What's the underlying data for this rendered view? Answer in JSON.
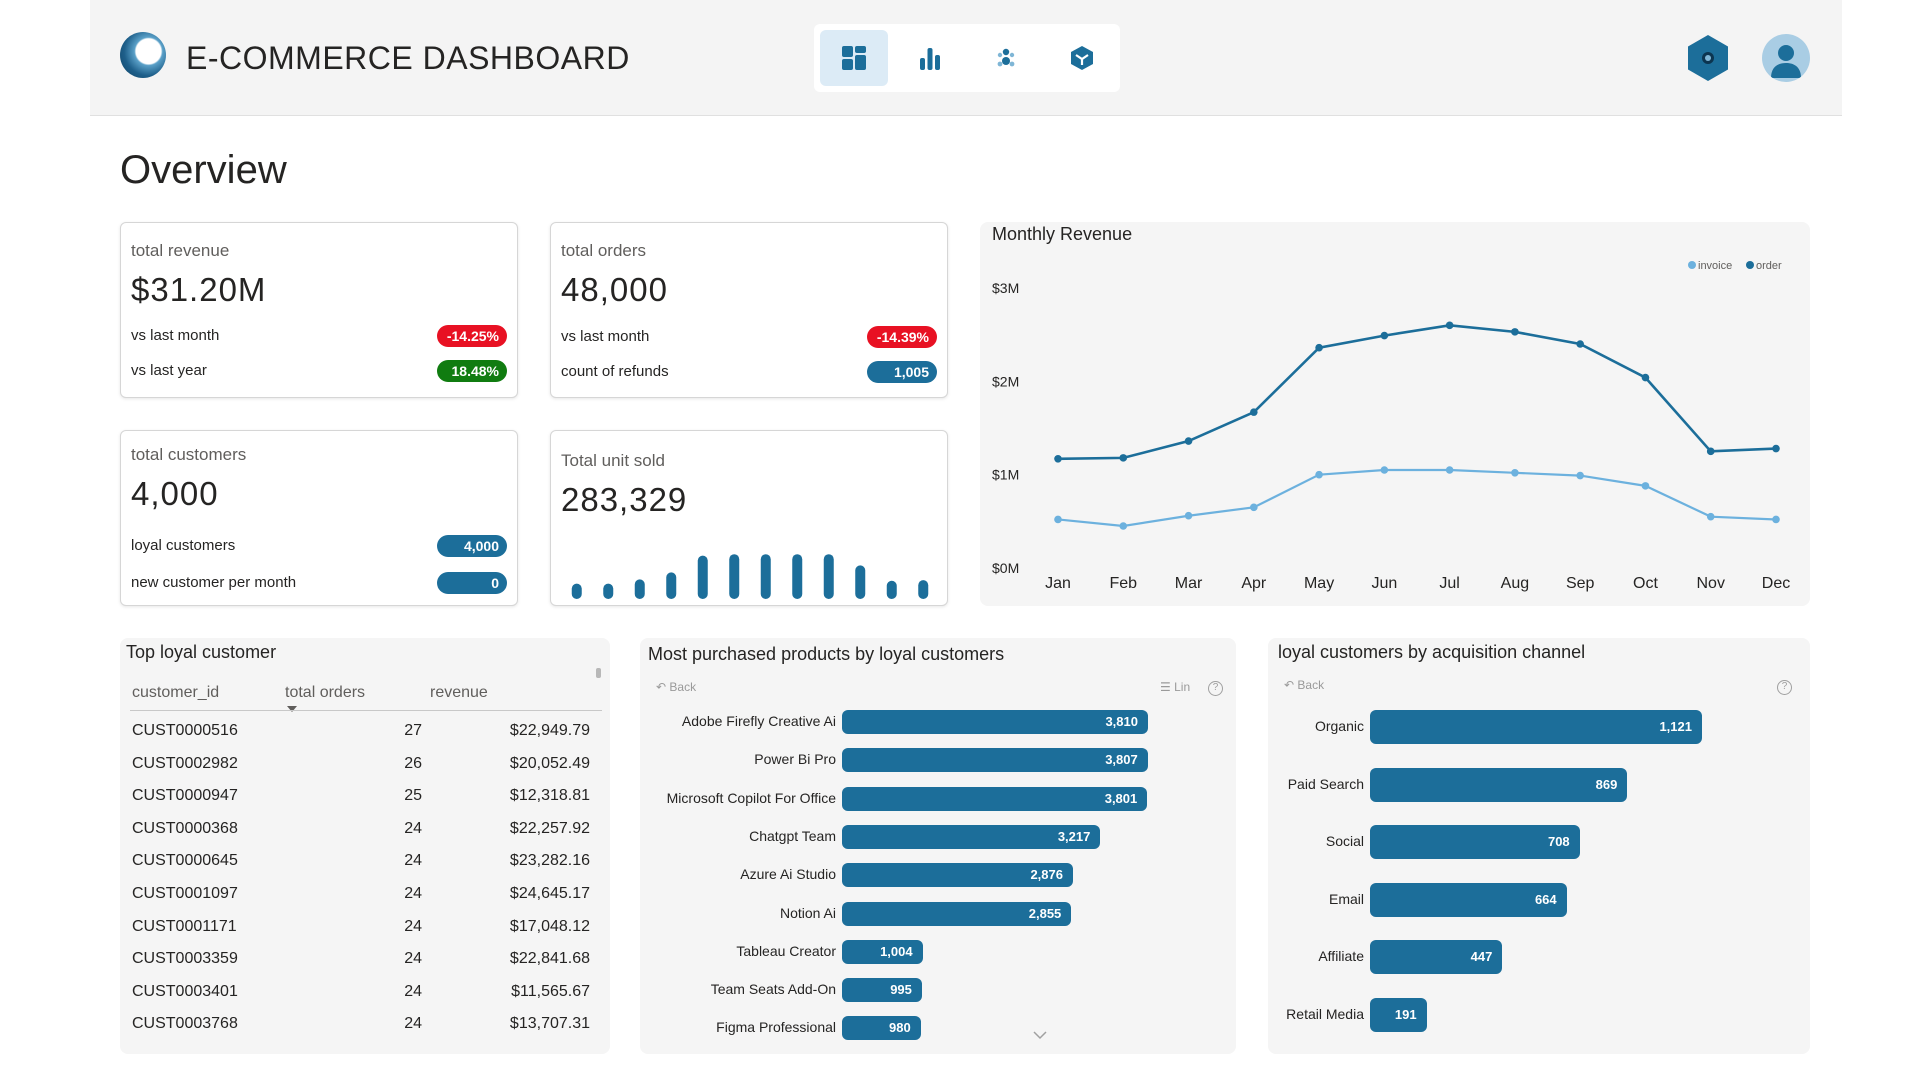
{
  "header": {
    "title": "E-COMMERCE DASHBOARD",
    "nav": [
      {
        "name": "dashboard",
        "icon": "dashboard-grid-icon",
        "active": true
      },
      {
        "name": "analytics",
        "icon": "bar-chart-icon",
        "active": false
      },
      {
        "name": "customers",
        "icon": "people-icon",
        "active": false
      },
      {
        "name": "products",
        "icon": "cube-icon",
        "active": false
      }
    ],
    "settings_icon": "hexagon-settings-icon",
    "avatar_icon": "user-avatar-icon"
  },
  "page_title": "Overview",
  "kpis": {
    "revenue": {
      "label": "total revenue",
      "value": "$31.20M",
      "row1_label": "vs last month",
      "row1_value": "-14.25%",
      "row2_label": "vs last year",
      "row2_value": "18.48%"
    },
    "orders": {
      "label": "total orders",
      "value": "48,000",
      "row1_label": "vs last month",
      "row1_value": "-14.39%",
      "row2_label": "count of refunds",
      "row2_value": "1,005"
    },
    "customers": {
      "label": "total customers",
      "value": "4,000",
      "row1_label": "loyal customers",
      "row1_value": "4,000",
      "row2_label": "new customer per month",
      "row2_value": "0"
    },
    "units": {
      "label": "Total unit sold",
      "value": "283,329",
      "sparkline_relative": [
        0.22,
        0.22,
        0.28,
        0.38,
        0.62,
        0.64,
        0.64,
        0.64,
        0.64,
        0.48,
        0.26,
        0.27
      ]
    }
  },
  "colors": {
    "accent": "#1c6e9a",
    "negative": "#e81123",
    "positive": "#107c10",
    "invoice": "#6cb1de",
    "order": "#1c6e9a"
  },
  "chart_data": {
    "type": "line",
    "title": "Monthly Revenue",
    "categories": [
      "Jan",
      "Feb",
      "Mar",
      "Apr",
      "May",
      "Jun",
      "Jul",
      "Aug",
      "Sep",
      "Oct",
      "Nov",
      "Dec"
    ],
    "series": [
      {
        "name": "invoice",
        "values": [
          0.52,
          0.45,
          0.56,
          0.65,
          1.0,
          1.05,
          1.05,
          1.02,
          0.99,
          0.88,
          0.55,
          0.52
        ]
      },
      {
        "name": "order",
        "values": [
          1.17,
          1.18,
          1.36,
          1.67,
          2.36,
          2.49,
          2.6,
          2.53,
          2.4,
          2.04,
          1.25,
          1.28
        ]
      }
    ],
    "ytick_labels": [
      "$0M",
      "$1M",
      "$2M",
      "$3M"
    ],
    "ylim": [
      0,
      3
    ],
    "legend": "top-right",
    "grid": false
  },
  "top_loyal": {
    "title": "Top loyal customer",
    "columns": [
      "customer_id",
      "total orders",
      "revenue"
    ],
    "rows": [
      [
        "CUST0000516",
        "27",
        "$22,949.79"
      ],
      [
        "CUST0002982",
        "26",
        "$20,052.49"
      ],
      [
        "CUST0000947",
        "25",
        "$12,318.81"
      ],
      [
        "CUST0000368",
        "24",
        "$22,257.92"
      ],
      [
        "CUST0000645",
        "24",
        "$23,282.16"
      ],
      [
        "CUST0001097",
        "24",
        "$24,645.17"
      ],
      [
        "CUST0001171",
        "24",
        "$17,048.12"
      ],
      [
        "CUST0003359",
        "24",
        "$22,841.68"
      ],
      [
        "CUST0003401",
        "24",
        "$11,565.67"
      ],
      [
        "CUST0003768",
        "24",
        "$13,707.31"
      ]
    ]
  },
  "products": {
    "title": "Most purchased products by loyal customers",
    "back_label": "Back",
    "lin_label": "Lin",
    "max": 3810,
    "items": [
      {
        "label": "Adobe Firefly Creative Ai",
        "value": 3810,
        "display": "3,810"
      },
      {
        "label": "Power Bi Pro",
        "value": 3807,
        "display": "3,807"
      },
      {
        "label": "Microsoft Copilot For Office",
        "value": 3801,
        "display": "3,801"
      },
      {
        "label": "Chatgpt Team",
        "value": 3217,
        "display": "3,217"
      },
      {
        "label": "Azure Ai Studio",
        "value": 2876,
        "display": "2,876"
      },
      {
        "label": "Notion Ai",
        "value": 2855,
        "display": "2,855"
      },
      {
        "label": "Tableau Creator",
        "value": 1004,
        "display": "1,004"
      },
      {
        "label": "Team Seats Add-On",
        "value": 995,
        "display": "995"
      },
      {
        "label": "Figma Professional",
        "value": 980,
        "display": "980"
      }
    ]
  },
  "channels": {
    "title": "loyal customers by acquisition channel",
    "back_label": "Back",
    "max": 1121,
    "items": [
      {
        "label": "Organic",
        "value": 1121,
        "display": "1,121"
      },
      {
        "label": "Paid Search",
        "value": 869,
        "display": "869"
      },
      {
        "label": "Social",
        "value": 708,
        "display": "708"
      },
      {
        "label": "Email",
        "value": 664,
        "display": "664"
      },
      {
        "label": "Affiliate",
        "value": 447,
        "display": "447"
      },
      {
        "label": "Retail Media",
        "value": 191,
        "display": "191"
      }
    ]
  }
}
